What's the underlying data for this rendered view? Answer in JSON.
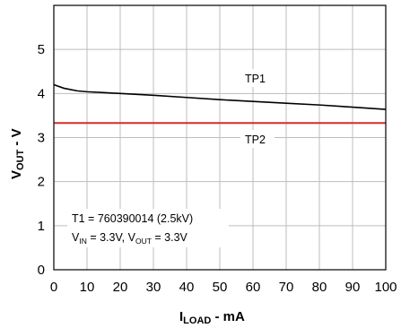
{
  "chart_data": {
    "type": "line",
    "xlabel": {
      "main": "I",
      "sub": "LOAD",
      "rest": " - mA"
    },
    "ylabel": {
      "main": "V",
      "sub": "OUT",
      "rest": " - V"
    },
    "xlim": [
      0,
      100
    ],
    "ylim": [
      0,
      6
    ],
    "xticks": [
      0,
      10,
      20,
      30,
      40,
      50,
      60,
      70,
      80,
      90,
      100
    ],
    "yticks": [
      0,
      1,
      2,
      3,
      4,
      5
    ],
    "grid": true,
    "series": [
      {
        "name": "TP1",
        "color": "#000000",
        "x": [
          0,
          3,
          7,
          10,
          15,
          20,
          30,
          40,
          50,
          60,
          70,
          80,
          90,
          100
        ],
        "y": [
          4.2,
          4.12,
          4.06,
          4.04,
          4.02,
          4.0,
          3.96,
          3.91,
          3.86,
          3.82,
          3.78,
          3.74,
          3.69,
          3.64
        ]
      },
      {
        "name": "TP2",
        "color": "#d42c2c",
        "x": [
          0,
          100
        ],
        "y": [
          3.33,
          3.33
        ]
      }
    ],
    "annotations": {
      "line1": "T1 = 760390014 (2.5kV)",
      "line2": {
        "v": "V",
        "in_sub": "IN",
        "in_val": " = 3.3V, ",
        "v2": "V",
        "out_sub": "OUT",
        "out_val": " = 3.3V"
      }
    }
  }
}
